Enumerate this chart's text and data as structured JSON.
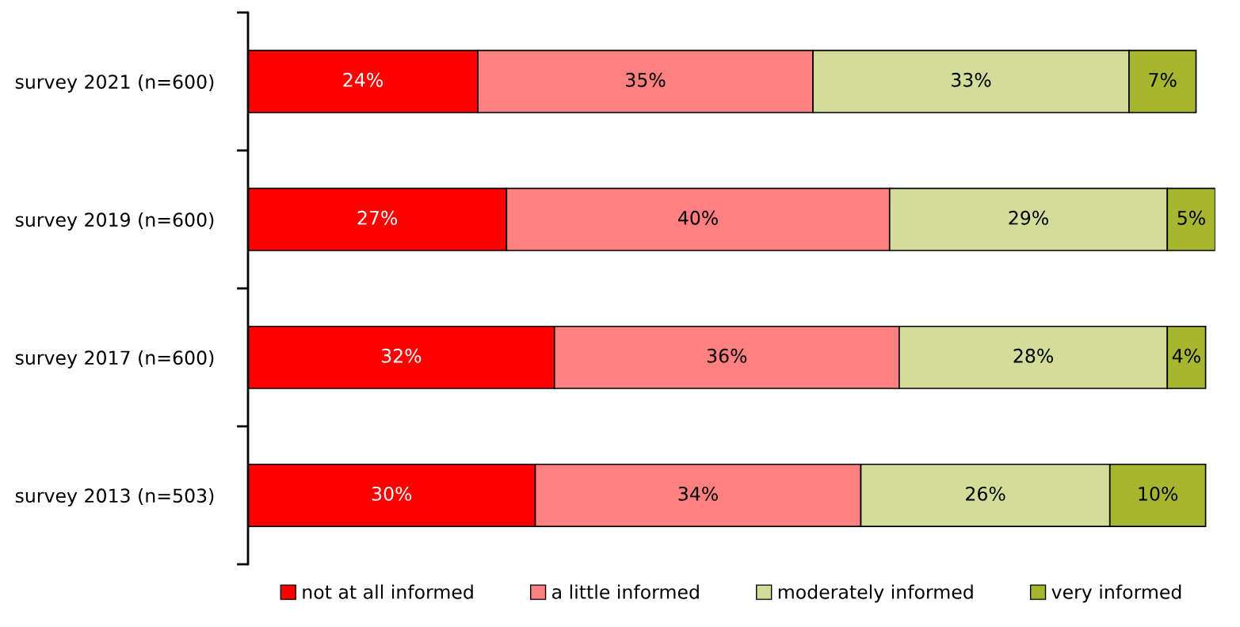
{
  "chart_data": {
    "type": "bar",
    "orientation": "horizontal",
    "stacked": true,
    "legend": "bottom",
    "grid": false,
    "categories": [
      "survey 2021 (n=600)",
      "survey 2019 (n=600)",
      "survey 2017 (n=600)",
      "survey 2013 (n=503)"
    ],
    "series": [
      {
        "name": "not at all informed",
        "color": "#ff0000",
        "values": [
          24,
          27,
          32,
          30
        ],
        "value_labels": [
          "24%",
          "27%",
          "32%",
          "30%"
        ]
      },
      {
        "name": "a little informed",
        "color": "#ff8080",
        "values": [
          35,
          40,
          36,
          34
        ],
        "value_labels": [
          "35%",
          "40%",
          "36%",
          "34%"
        ]
      },
      {
        "name": "moderately informed",
        "color": "#d4dc9a",
        "values": [
          33,
          29,
          28,
          26
        ],
        "value_labels": [
          "33%",
          "29%",
          "28%",
          "26%"
        ]
      },
      {
        "name": "very informed",
        "color": "#a6b62e",
        "values": [
          7,
          5,
          4,
          10
        ],
        "value_labels": [
          "7%",
          "5%",
          "4%",
          "10%"
        ]
      }
    ]
  }
}
